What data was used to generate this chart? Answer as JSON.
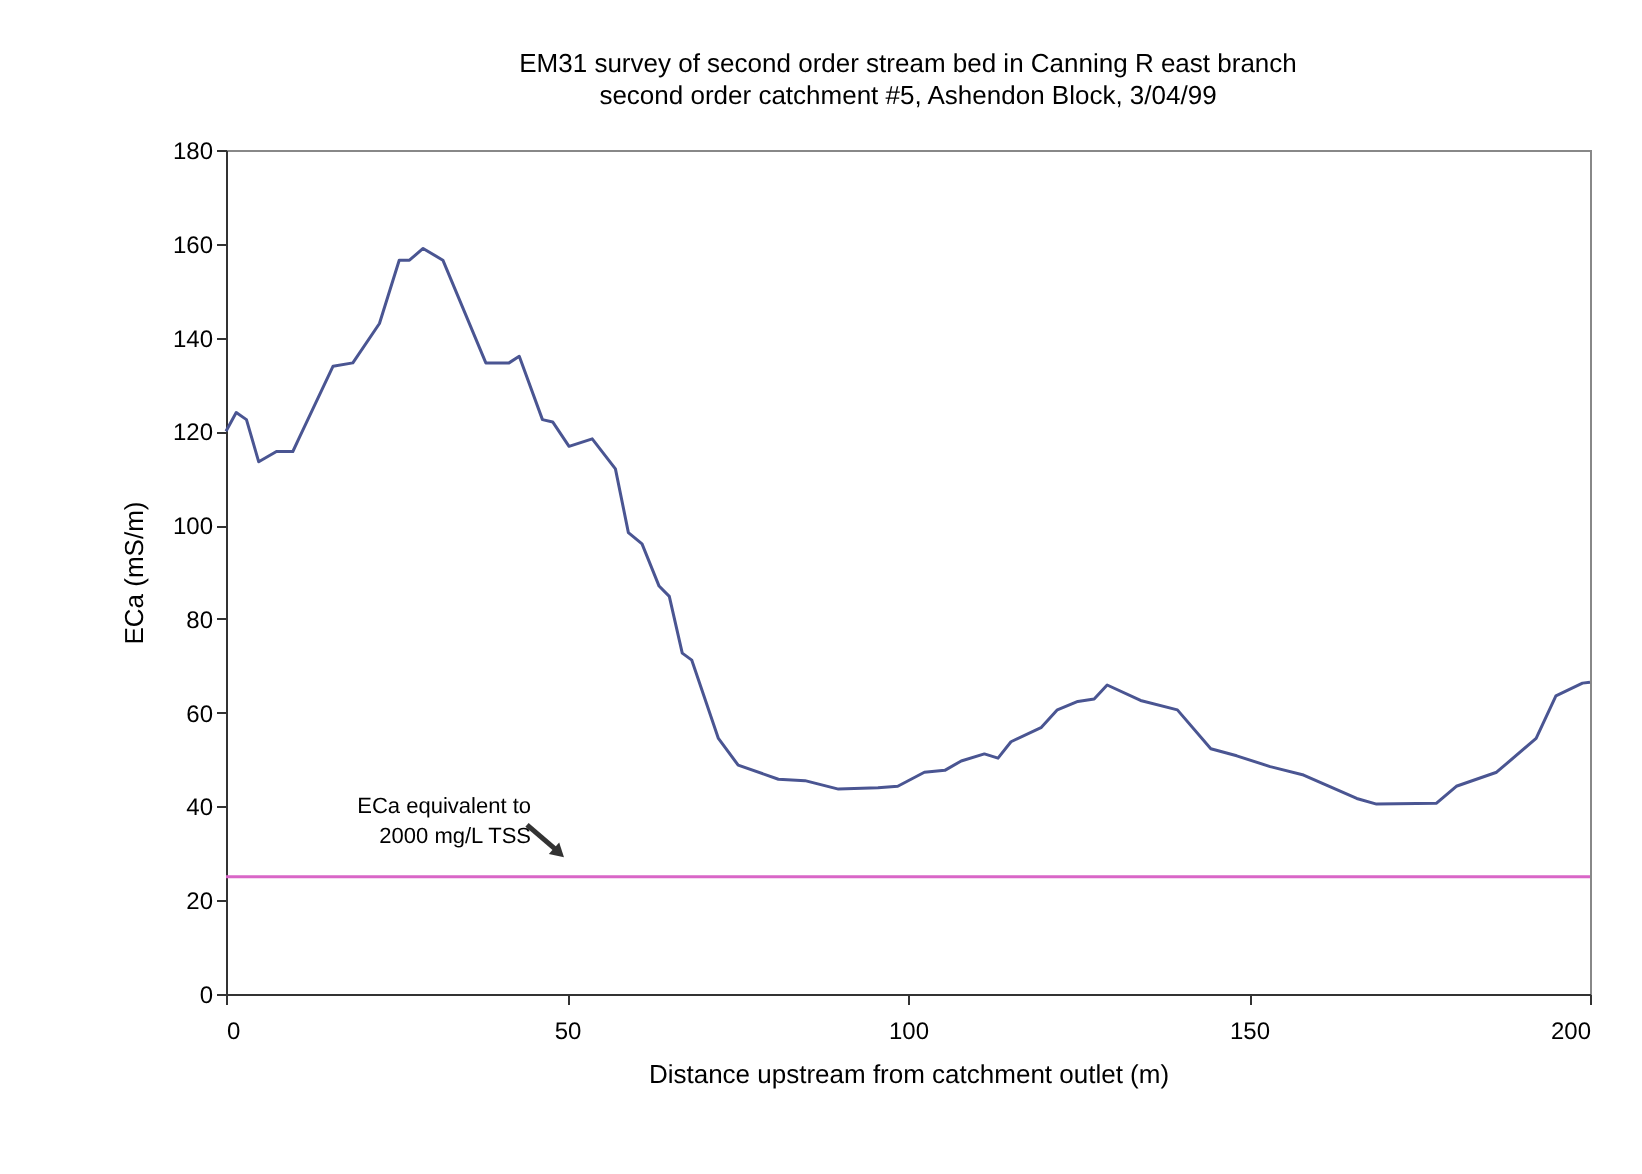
{
  "chart_data": {
    "type": "line",
    "title": "EM31 survey of second order stream bed in Canning R east branch",
    "subtitle": "second order catchment #5, Ashendon Block, 3/04/99",
    "xlabel": "Distance upstream from catchment outlet (m)",
    "ylabel": "ECa (mS/m)",
    "series": [
      {
        "color": "#4a5592",
        "x": [
          0,
          1.5,
          3,
          4.8,
          7.4,
          9.8,
          10.8,
          15.7,
          18.6,
          22.5,
          25.4,
          26.9,
          28.9,
          31.8,
          38.1,
          41.5,
          43,
          46.4,
          47.9,
          50.3,
          53.7,
          57.1,
          59,
          61,
          63.5,
          65,
          66.9,
          68.3,
          72.2,
          75.1,
          81,
          84.9,
          89.8,
          95.6,
          98.5,
          102.4,
          105.4,
          107.8,
          111.2,
          113.2,
          115.1,
          119.5,
          121.9,
          124.9,
          127.3,
          129.2,
          134.1,
          139.5,
          144.4,
          148.2,
          153.1,
          158,
          165.8,
          168.7,
          177.5,
          180.4,
          186.3,
          192.1,
          195,
          198.9,
          200
        ],
        "values": [
          120,
          124,
          122.5,
          113.5,
          115.7,
          115.7,
          118.8,
          133.9,
          134.6,
          143,
          156.5,
          156.5,
          159,
          156.5,
          134.6,
          134.6,
          136,
          122.5,
          122,
          116.8,
          118.4,
          112,
          98.4,
          96,
          87,
          84.8,
          72.7,
          71.2,
          54.5,
          48.8,
          45.8,
          45.5,
          43.7,
          44,
          44.3,
          47.3,
          47.7,
          49.7,
          51.2,
          50.3,
          53.8,
          56.8,
          60.6,
          62.4,
          62.9,
          65.9,
          62.6,
          60.6,
          52.3,
          50.8,
          48.5,
          46.7,
          41.7,
          40.5,
          40.7,
          44.3,
          47.3,
          54.5,
          63.6,
          66.3,
          66.5
        ]
      }
    ],
    "xlim": [
      0,
      200
    ],
    "xticks": [
      0,
      50,
      100,
      150,
      200
    ],
    "ylim": [
      0,
      180
    ],
    "yticks": [
      0,
      20,
      40,
      60,
      80,
      100,
      120,
      140,
      160,
      180
    ],
    "ref_lines": [
      {
        "axis": "y",
        "value": 25,
        "color": "#d966c7"
      }
    ],
    "annotations": [
      {
        "text": "ECa equivalent to\n2000 mg/L TSS",
        "x": 50,
        "y": 25
      }
    ],
    "grid": false,
    "marker": "none",
    "line_style": "solid"
  }
}
